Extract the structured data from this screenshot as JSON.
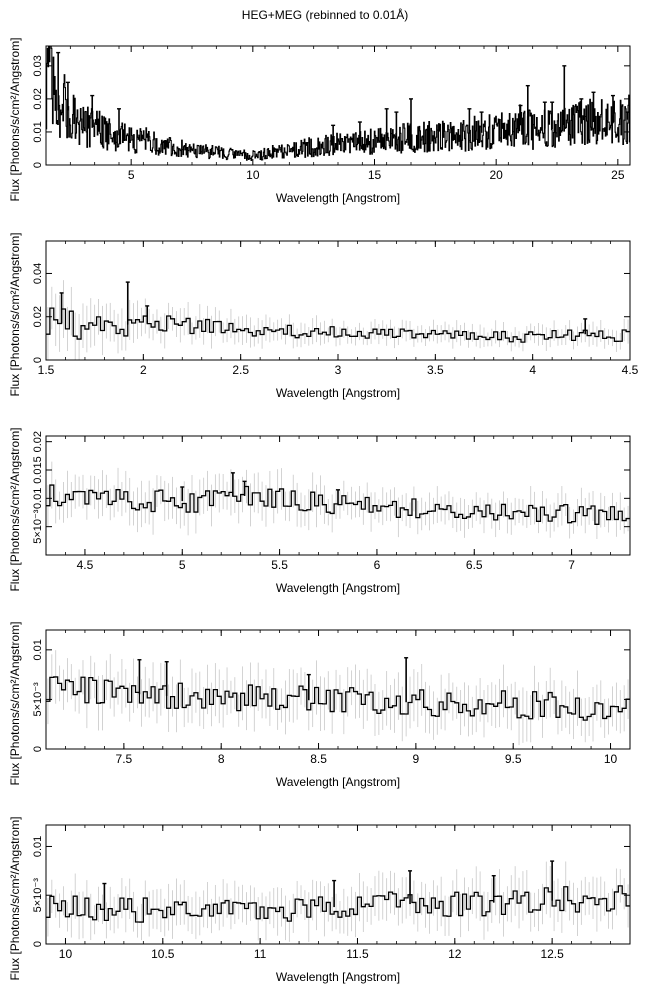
{
  "title": "HEG+MEG (rebinned to 0.01Å)",
  "xlabel": "Wavelength [Angstrom]",
  "ylabel": "Flux [Photons/s/cm²/Angstrom]",
  "colors": {
    "line": "#000000",
    "error_bar": "#c8c8c8",
    "frame": "#000000",
    "background": "#ffffff"
  },
  "chart_data": [
    {
      "type": "line",
      "xlim": [
        1.5,
        25.5
      ],
      "ylim": [
        0,
        0.036
      ],
      "xticks": [
        5,
        10,
        15,
        20,
        25
      ],
      "xticklabels": [
        "5",
        "10",
        "15",
        "20",
        "25"
      ],
      "yticks": [
        0,
        0.01,
        0.02,
        0.03
      ],
      "yticklabels": [
        "0",
        "0.01",
        "0.02",
        "0.03"
      ],
      "series": [
        {
          "x": [
            1.5,
            1.7,
            1.9,
            2.1,
            2.3,
            2.5,
            2.8,
            3.1,
            3.5,
            4,
            4.5,
            5,
            5.5,
            6,
            6.5,
            7,
            7.5,
            8,
            8.5,
            9,
            9.5,
            10,
            10.5,
            11,
            11.5,
            12,
            12.5,
            13,
            13.5,
            14,
            14.5,
            15,
            15.5,
            16,
            16.5,
            17,
            17.5,
            18,
            18.5,
            19,
            19.5,
            20,
            20.5,
            21,
            21.5,
            22,
            22.5,
            23,
            23.5,
            24,
            24.5,
            25,
            25.5
          ],
          "values": [
            0.02,
            0.03,
            0.016,
            0.017,
            0.018,
            0.015,
            0.013,
            0.012,
            0.011,
            0.01,
            0.009,
            0.008,
            0.0075,
            0.0068,
            0.0058,
            0.005,
            0.0045,
            0.0042,
            0.0038,
            0.0035,
            0.0032,
            0.003,
            0.0035,
            0.004,
            0.0045,
            0.005,
            0.0055,
            0.006,
            0.0062,
            0.0065,
            0.007,
            0.0072,
            0.0075,
            0.008,
            0.0082,
            0.0085,
            0.0088,
            0.009,
            0.0092,
            0.0095,
            0.0098,
            0.01,
            0.011,
            0.012,
            0.0105,
            0.011,
            0.0108,
            0.012,
            0.0125,
            0.013,
            0.0128,
            0.0125,
            0.014
          ],
          "spikes": [
            [
              2.0,
              0.034
            ],
            [
              2.4,
              0.025
            ],
            [
              3.4,
              0.021
            ],
            [
              4.5,
              0.017
            ],
            [
              13.3,
              0.012
            ],
            [
              14.4,
              0.013
            ],
            [
              15.5,
              0.017
            ],
            [
              15.9,
              0.016
            ],
            [
              16.5,
              0.02
            ],
            [
              18.9,
              0.017
            ],
            [
              19.4,
              0.016
            ],
            [
              21.0,
              0.018
            ],
            [
              21.3,
              0.024
            ],
            [
              22.0,
              0.019
            ],
            [
              22.3,
              0.019
            ],
            [
              22.8,
              0.03
            ],
            [
              23.5,
              0.02
            ],
            [
              24.0,
              0.022
            ],
            [
              24.8,
              0.021
            ],
            [
              25.4,
              0.016
            ]
          ]
        }
      ]
    },
    {
      "type": "line",
      "xlim": [
        1.5,
        4.5
      ],
      "ylim": [
        0,
        0.055
      ],
      "xticks": [
        1.5,
        2,
        2.5,
        3,
        3.5,
        4,
        4.5
      ],
      "xticklabels": [
        "1.5",
        "2",
        "2.5",
        "3",
        "3.5",
        "4",
        "4.5"
      ],
      "yticks": [
        0,
        0.02,
        0.04
      ],
      "yticklabels": [
        "0",
        "0.02",
        "0.04"
      ],
      "series": [
        {
          "x": [
            1.5,
            1.75,
            2,
            2.25,
            2.5,
            2.75,
            3,
            3.25,
            3.5,
            3.75,
            4,
            4.25,
            4.5
          ],
          "values": [
            0.018,
            0.015,
            0.017,
            0.016,
            0.014,
            0.013,
            0.013,
            0.012,
            0.012,
            0.011,
            0.011,
            0.012,
            0.011
          ],
          "errors": [
            0.01,
            0.009,
            0.007,
            0.006,
            0.005,
            0.005,
            0.004,
            0.004,
            0.004,
            0.004,
            0.004,
            0.004,
            0.004
          ],
          "spikes": [
            [
              1.58,
              0.031
            ],
            [
              1.92,
              0.036
            ],
            [
              2.02,
              0.025
            ],
            [
              4.27,
              0.019
            ]
          ]
        }
      ]
    },
    {
      "type": "line",
      "xlim": [
        4.3,
        7.3
      ],
      "ylim": [
        0,
        0.021
      ],
      "xticks": [
        4.5,
        5,
        5.5,
        6,
        6.5,
        7
      ],
      "xticklabels": [
        "4.5",
        "5",
        "5.5",
        "6",
        "6.5",
        "7"
      ],
      "yticks": [
        0.005,
        0.01,
        0.015,
        0.02
      ],
      "yticklabels": [
        "5×10⁻³",
        "0.01",
        "0.015",
        "0.02"
      ],
      "series": [
        {
          "x": [
            4.3,
            4.55,
            4.8,
            5.05,
            5.3,
            5.55,
            5.8,
            6.05,
            6.3,
            6.55,
            6.8,
            7.05,
            7.3
          ],
          "values": [
            0.0105,
            0.01,
            0.0095,
            0.0095,
            0.0105,
            0.0095,
            0.009,
            0.0085,
            0.008,
            0.0075,
            0.0072,
            0.0072,
            0.007
          ],
          "errors": [
            0.003,
            0.003,
            0.003,
            0.003,
            0.003,
            0.003,
            0.0025,
            0.0025,
            0.0025,
            0.0025,
            0.0025,
            0.0025,
            0.0025
          ],
          "spikes": [
            [
              5.26,
              0.0145
            ],
            [
              5.32,
              0.013
            ],
            [
              5.0,
              0.012
            ],
            [
              5.8,
              0.0115
            ]
          ]
        }
      ]
    },
    {
      "type": "line",
      "xlim": [
        7.1,
        10.1
      ],
      "ylim": [
        0,
        0.012
      ],
      "xticks": [
        7.5,
        8,
        8.5,
        9,
        9.5,
        10
      ],
      "xticklabels": [
        "7.5",
        "8",
        "8.5",
        "9",
        "9.5",
        "10"
      ],
      "yticks": [
        0,
        0.005,
        0.01
      ],
      "yticklabels": [
        "0",
        "5×10⁻³",
        "0.01"
      ],
      "series": [
        {
          "x": [
            7.1,
            7.35,
            7.6,
            7.85,
            8.1,
            8.35,
            8.6,
            8.85,
            9.1,
            9.35,
            9.6,
            9.85,
            10.1
          ],
          "values": [
            0.006,
            0.0058,
            0.0055,
            0.0052,
            0.0052,
            0.005,
            0.0048,
            0.0048,
            0.0046,
            0.0045,
            0.0044,
            0.0042,
            0.0042
          ],
          "errors": [
            0.002,
            0.002,
            0.002,
            0.002,
            0.002,
            0.002,
            0.002,
            0.002,
            0.002,
            0.002,
            0.002,
            0.002,
            0.002
          ],
          "spikes": [
            [
              7.58,
              0.009
            ],
            [
              7.72,
              0.0088
            ],
            [
              8.95,
              0.0092
            ],
            [
              8.45,
              0.0075
            ]
          ]
        }
      ]
    },
    {
      "type": "line",
      "xlim": [
        9.9,
        12.9
      ],
      "ylim": [
        0,
        0.0122
      ],
      "xticks": [
        10,
        10.5,
        11,
        11.5,
        12,
        12.5
      ],
      "xticklabels": [
        "10",
        "10.5",
        "11",
        "11.5",
        "12",
        "12.5"
      ],
      "yticks": [
        0,
        0.005,
        0.01
      ],
      "yticklabels": [
        "0",
        "5×10⁻³",
        "0.01"
      ],
      "series": [
        {
          "x": [
            9.9,
            10.15,
            10.4,
            10.65,
            10.9,
            11.15,
            11.4,
            11.65,
            11.9,
            12.15,
            12.4,
            12.65,
            12.9
          ],
          "values": [
            0.0038,
            0.0036,
            0.0035,
            0.0034,
            0.0035,
            0.0036,
            0.0038,
            0.004,
            0.0042,
            0.0042,
            0.0044,
            0.0045,
            0.0046
          ],
          "errors": [
            0.0018,
            0.0018,
            0.0018,
            0.0018,
            0.0018,
            0.0018,
            0.0019,
            0.0019,
            0.002,
            0.002,
            0.002,
            0.002,
            0.002
          ],
          "spikes": [
            [
              11.77,
              0.0075
            ],
            [
              12.5,
              0.0085
            ],
            [
              12.2,
              0.007
            ],
            [
              10.2,
              0.0062
            ],
            [
              11.38,
              0.0065
            ]
          ]
        }
      ]
    }
  ]
}
